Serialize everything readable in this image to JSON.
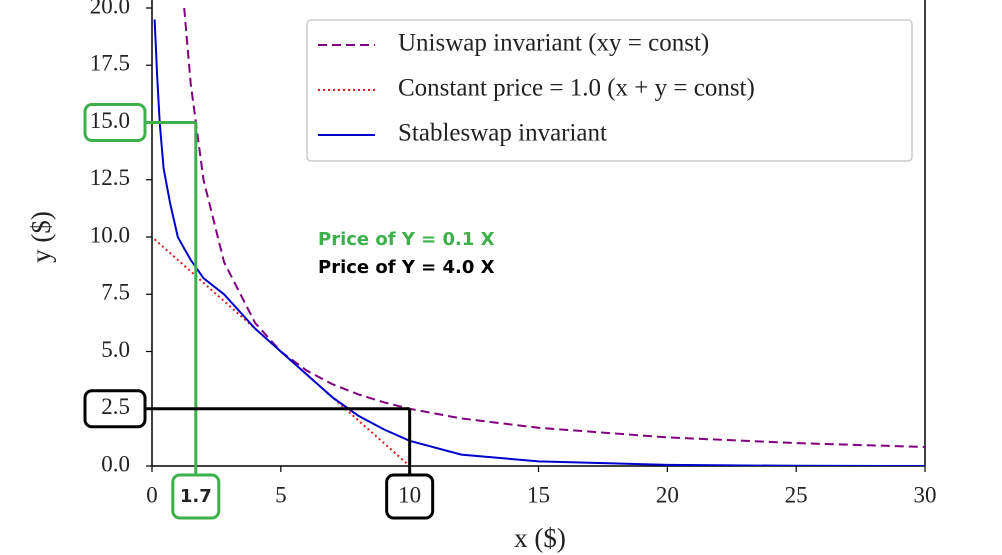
{
  "chart_data": {
    "type": "line",
    "x_label": "x ($)",
    "y_label": "y ($)",
    "x": [
      0.1,
      0.2,
      0.3,
      0.45,
      0.7,
      1,
      1.25,
      1.5,
      2,
      2.8,
      4,
      5,
      6,
      7,
      8,
      9,
      10,
      12,
      15,
      20,
      25,
      30
    ],
    "series": [
      {
        "name": "Uniswap invariant (xy = const)",
        "color": "#800080",
        "dash": "dashed",
        "values": [
          null,
          null,
          null,
          null,
          null,
          null,
          20,
          16.7,
          12.5,
          8.9,
          6.25,
          5,
          4.17,
          3.57,
          3.13,
          2.78,
          2.5,
          2.08,
          1.67,
          1.25,
          1,
          0.83
        ]
      },
      {
        "name": "Constant price = 1.0 (x + y = const)",
        "color": "#e31a1c",
        "dash": "dotted",
        "values": [
          9.9,
          9.8,
          9.7,
          9.55,
          9.3,
          9,
          8.75,
          8.5,
          8,
          7.2,
          6,
          5,
          4,
          3,
          2,
          1,
          0,
          null,
          null,
          null,
          null,
          null
        ]
      },
      {
        "name": "Stableswap invariant",
        "color": "#0000cc",
        "dash": "solid",
        "values": [
          19.5,
          17,
          15,
          13,
          11.5,
          10,
          9.5,
          9,
          8.2,
          7.5,
          6,
          5,
          4,
          3,
          2.2,
          1.6,
          1.1,
          0.5,
          0.2,
          0.05,
          0.01,
          0
        ]
      }
    ],
    "xlim": [
      0,
      30
    ],
    "xticks": [
      0,
      5,
      10,
      15,
      20,
      25,
      30
    ],
    "ylim": [
      0,
      20
    ],
    "yticks": [
      {
        "value": 0,
        "label": "0.0"
      },
      2.5,
      {
        "value": 5,
        "label": "5.0"
      },
      7.5,
      {
        "value": 10,
        "label": "10.0"
      },
      12.5,
      {
        "value": 15,
        "label": "15.0"
      },
      17.5,
      {
        "value": 20,
        "label": "20.0"
      }
    ],
    "legend": "upper right",
    "guides": [
      {
        "x": 1.7,
        "y": 15,
        "color": "#3cb04a"
      },
      {
        "x": 10,
        "y": 2.5,
        "color": "#000000"
      }
    ],
    "annotations": [
      {
        "text": "Price of Y = 0.1 X",
        "color": "#3cb04a"
      },
      {
        "text": "Price of Y = 4.0 X",
        "color": "#000000"
      }
    ]
  }
}
